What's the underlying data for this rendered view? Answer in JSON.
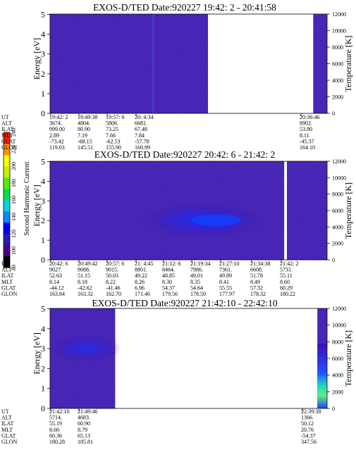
{
  "colorbar": {
    "label": "Second Harmonic Current",
    "ticks": [
      "80",
      "100",
      "120",
      "140",
      "160",
      "180",
      "200",
      "220",
      "240"
    ],
    "colors": [
      "#000000",
      "#4b0082",
      "#2a1ab0",
      "#0000ff",
      "#0a8cff",
      "#00d8d8",
      "#00e050",
      "#50f000",
      "#c8f000",
      "#ffff00",
      "#ff9000",
      "#ff2000"
    ]
  },
  "panels": [
    {
      "title": "EXOS-D/TED   Date:920227  19:42: 2 - 20:41:58",
      "ylabel": "Energy [eV]",
      "y2label": "Temperature [K]",
      "y_ticks": [
        "0",
        "1",
        "2",
        "3",
        "4",
        "5"
      ],
      "y2_ticks": [
        "0",
        "2000",
        "4000",
        "6000",
        "8000",
        "10000",
        "12000"
      ],
      "data_segments": [
        {
          "x_from": 0.0,
          "x_to": 0.57
        },
        {
          "x_from": 0.95,
          "x_to": 1.0
        }
      ],
      "orbit_labels": [
        "UT",
        "ALT",
        "ILAT",
        "MLT",
        "GLAT",
        "GLON"
      ],
      "orbit": [
        {
          "ut": "19:42: 2",
          "values": [
            "3674.",
            "999.00",
            "2.89",
            "-73.42",
            "119.03"
          ]
        },
        {
          "ut": "19:49:38",
          "values": [
            "4804.",
            "80.90",
            "7.19",
            "-68.15",
            "145.51"
          ]
        },
        {
          "ut": "19:57: 6",
          "values": [
            "5806.",
            "73.25",
            "7.66",
            "-62.53",
            "155.90"
          ]
        },
        {
          "ut": "20: 4:34",
          "values": [
            "6681.",
            "67.48",
            "7.84",
            "-57.78",
            "160.99"
          ]
        },
        {
          "ut": "20:36:46",
          "values": [
            "8902.",
            "53.90",
            "8.11",
            "-45.37",
            "164.10"
          ]
        }
      ]
    },
    {
      "title": "EXOS-D/TED   Date:920227  20:42: 6 - 21:42: 2",
      "ylabel": "Energy [eV]",
      "y2label": "Temperature [K]",
      "y_ticks": [
        "0",
        "1",
        "2",
        "3",
        "4",
        "5"
      ],
      "y2_ticks": [
        "0",
        "2000",
        "4000",
        "6000",
        "8000",
        "10000",
        "12000"
      ],
      "data_segments": [
        {
          "x_from": 0.0,
          "x_to": 0.845
        },
        {
          "x_from": 0.855,
          "x_to": 1.0
        }
      ],
      "orbit_labels": [
        "UT",
        "ALT",
        "ILAT",
        "MLT",
        "GLAT",
        "GLON"
      ],
      "orbit": [
        {
          "ut": "20:42: 6",
          "values": [
            "9027.",
            "52.63",
            "8.14",
            "-44.12",
            "163.84"
          ]
        },
        {
          "ut": "20:49:42",
          "values": [
            "9088.",
            "51.15",
            "8.18",
            "-42.62",
            "163.32"
          ]
        },
        {
          "ut": "20:57: 6",
          "values": [
            "9015.",
            "50.03",
            "8.22",
            "-41.46",
            "162.70"
          ]
        },
        {
          "ut": "21: 4:45",
          "values": [
            "8801.",
            "49.22",
            "8.26",
            "6.96",
            "171.46"
          ]
        },
        {
          "ut": "21:12: 6",
          "values": [
            "8464.",
            "48.85",
            "8.30",
            "54.37",
            "179.56"
          ]
        },
        {
          "ut": "21:19:34",
          "values": [
            "7986.",
            "49.01",
            "8.35",
            "54.64",
            "178.50"
          ]
        },
        {
          "ut": "21:27:10",
          "values": [
            "7361.",
            "49.89",
            "8.41",
            "55.55",
            "177.97"
          ]
        },
        {
          "ut": "21:34:38",
          "values": [
            "6608.",
            "51.78",
            "8.49",
            "57.32",
            "178.32"
          ]
        },
        {
          "ut": "21:42: 2",
          "values": [
            "5731.",
            "55.11",
            "8.60",
            "60.29",
            "180.22"
          ]
        }
      ]
    },
    {
      "title": "EXOS-D/TED   Date:920227  21:42:10 - 22:42:10",
      "ylabel": "Energy [eV]",
      "y2label": "Temperature [K]",
      "y_ticks": [
        "0",
        "1",
        "2",
        "3",
        "4",
        "5"
      ],
      "y2_ticks": [
        "0",
        "2000",
        "4000",
        "6000",
        "8000",
        "10000",
        "12000"
      ],
      "data_segments": [
        {
          "x_from": 0.0,
          "x_to": 0.235
        },
        {
          "x_from": 0.965,
          "x_to": 1.0
        }
      ],
      "orbit_labels": [
        "UT",
        "ALT",
        "ILAT",
        "MLT",
        "GLAT",
        "GLON"
      ],
      "orbit": [
        {
          "ut": "21:42:10",
          "values": [
            "5714.",
            "55.19",
            "8.60",
            "60.36",
            "180.28"
          ]
        },
        {
          "ut": "21:49:46",
          "values": [
            "4683.",
            "60.90",
            "8.79",
            "65.13",
            "185.81"
          ]
        },
        {
          "ut": "22:39:38",
          "values": [
            "1366.",
            "50.12",
            "20.76",
            "-54.37",
            "347.56"
          ]
        }
      ]
    }
  ]
}
